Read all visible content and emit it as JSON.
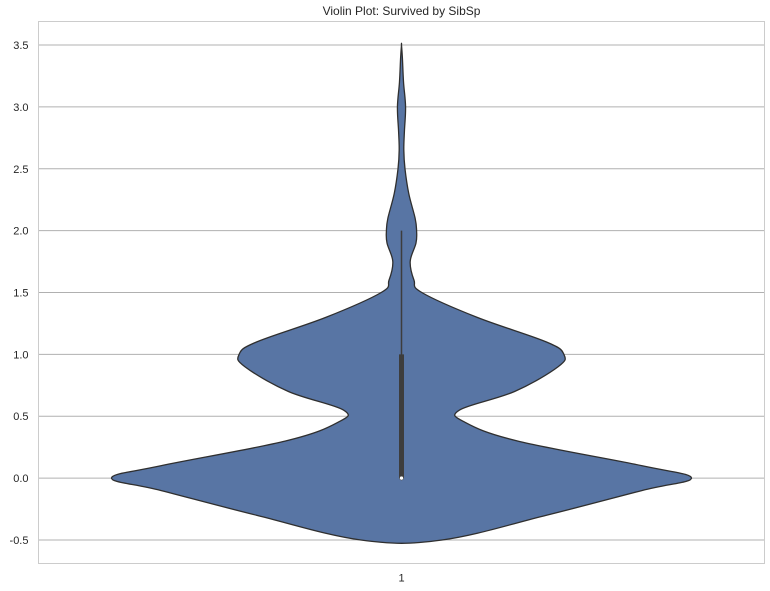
{
  "chart_data": {
    "type": "violin",
    "title": "Violin Plot: Survived by SibSp",
    "xlabel": "",
    "ylabel": "",
    "categories": [
      "1"
    ],
    "ylim": [
      -0.69,
      3.69
    ],
    "yticks": [
      -0.5,
      0.0,
      0.5,
      1.0,
      1.5,
      2.0,
      2.5,
      3.0,
      3.5
    ],
    "ytick_labels": [
      "-0.5",
      "0.0",
      "0.5",
      "1.0",
      "1.5",
      "2.0",
      "2.5",
      "3.0",
      "3.5"
    ],
    "grid": true,
    "colors": {
      "violin_fill": "#5875a4",
      "violin_edge": "#2f2f2f",
      "grid": "#b0b0b0",
      "box": "#3d3d3d",
      "median": "#ffffff"
    },
    "violins": [
      {
        "category": "1",
        "density_profile": [
          {
            "y": -0.5,
            "half_width": 0.14
          },
          {
            "y": -0.3,
            "half_width": 0.5
          },
          {
            "y": -0.1,
            "half_width": 0.83
          },
          {
            "y": 0.0,
            "half_width": 1.0
          },
          {
            "y": 0.1,
            "half_width": 0.83
          },
          {
            "y": 0.3,
            "half_width": 0.4
          },
          {
            "y": 0.45,
            "half_width": 0.22
          },
          {
            "y": 0.55,
            "half_width": 0.2
          },
          {
            "y": 0.7,
            "half_width": 0.39
          },
          {
            "y": 0.9,
            "half_width": 0.54
          },
          {
            "y": 1.0,
            "half_width": 0.56
          },
          {
            "y": 1.1,
            "half_width": 0.5
          },
          {
            "y": 1.3,
            "half_width": 0.26
          },
          {
            "y": 1.5,
            "half_width": 0.07
          },
          {
            "y": 1.6,
            "half_width": 0.043
          },
          {
            "y": 1.75,
            "half_width": 0.03
          },
          {
            "y": 1.9,
            "half_width": 0.05
          },
          {
            "y": 2.0,
            "half_width": 0.052
          },
          {
            "y": 2.1,
            "half_width": 0.047
          },
          {
            "y": 2.3,
            "half_width": 0.025
          },
          {
            "y": 2.5,
            "half_width": 0.012
          },
          {
            "y": 2.65,
            "half_width": 0.008
          },
          {
            "y": 2.8,
            "half_width": 0.01
          },
          {
            "y": 3.0,
            "half_width": 0.014
          },
          {
            "y": 3.2,
            "half_width": 0.007
          },
          {
            "y": 3.4,
            "half_width": 0.003
          },
          {
            "y": 3.5,
            "half_width": 0.0
          }
        ],
        "whisker_low": 0.0,
        "whisker_high": 2.0,
        "q1": 0.0,
        "q3": 1.0,
        "median": 0.0
      }
    ]
  }
}
